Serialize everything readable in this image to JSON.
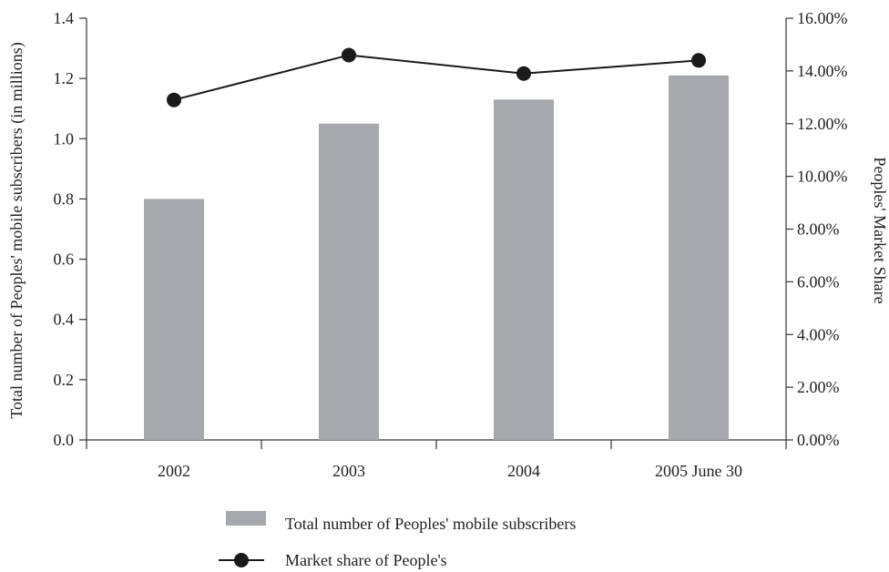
{
  "chart_data": {
    "type": "bar",
    "categories": [
      "2002",
      "2003",
      "2004",
      "2005 June 30"
    ],
    "series": [
      {
        "name": "Total number of Peoples' mobile subscribers",
        "type": "bar",
        "axis": "left",
        "values": [
          0.8,
          1.05,
          1.13,
          1.21
        ],
        "color": "#a7a8ab"
      },
      {
        "name": "Market share of People's",
        "type": "line",
        "axis": "right",
        "values": [
          12.9,
          14.6,
          13.9,
          14.4
        ],
        "color": "#1a1a1a"
      }
    ],
    "y_left": {
      "label": "Total number of Peoples' mobile subscribers (in millions)",
      "range": [
        0,
        1.4
      ],
      "ticks": [
        "0.0",
        "0.2",
        "0.4",
        "0.6",
        "0.8",
        "1.0",
        "1.2",
        "1.4"
      ]
    },
    "y_right": {
      "label": "Peoples' Market Share",
      "range": [
        0,
        16
      ],
      "ticks": [
        "0.00%",
        "2.00%",
        "4.00%",
        "6.00%",
        "8.00%",
        "10.00%",
        "12.00%",
        "14.00%",
        "16.00%"
      ]
    },
    "grid": false,
    "legend_position": "bottom"
  }
}
